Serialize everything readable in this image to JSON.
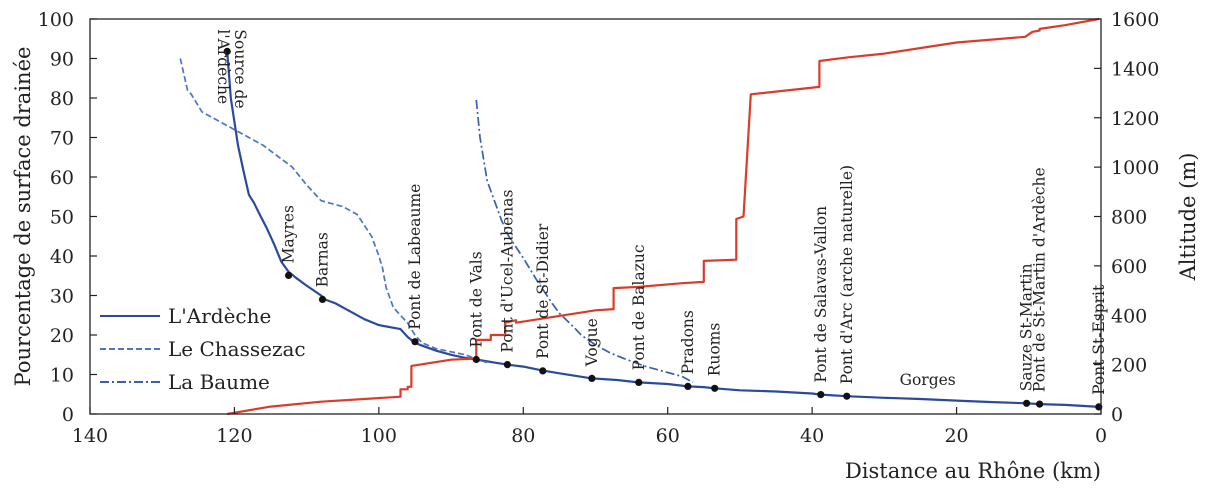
{
  "chart_data": {
    "type": "line",
    "x_axis": {
      "label": "Distance au Rhône (km)",
      "min": 0,
      "max": 140,
      "reversed": true,
      "ticks": [
        140,
        120,
        100,
        80,
        60,
        40,
        20,
        0
      ]
    },
    "y_left": {
      "label": "Pourcentage de surface drainée",
      "min": 0,
      "max": 100,
      "ticks": [
        0,
        10,
        20,
        30,
        40,
        50,
        60,
        70,
        80,
        90,
        100
      ]
    },
    "y_right": {
      "label": "Altitude (m)",
      "min": 0,
      "max": 1600,
      "ticks": [
        0,
        200,
        400,
        600,
        800,
        1000,
        1200,
        1400,
        1600
      ]
    },
    "grid": false,
    "legend": {
      "placement": "lower-left",
      "entries": [
        {
          "name": "L'Ardèche",
          "series": "ardeche"
        },
        {
          "name": "Le Chassezac",
          "series": "chassezac"
        },
        {
          "name": "La Baume",
          "series": "baume"
        }
      ]
    },
    "series": [
      {
        "id": "ardeche",
        "name": "L'Ardèche",
        "axis": "left",
        "color": "#2b4a9c",
        "style": "solid",
        "x": [
          121,
          120.5,
          119.5,
          118.8,
          118,
          117.3,
          116.5,
          115.5,
          114.5,
          113.5,
          112.5,
          111.5,
          110,
          108,
          107.5,
          106,
          104,
          102,
          100,
          97,
          96,
          95,
          94,
          92,
          90,
          88,
          86.5,
          84,
          82.2,
          80,
          77.3,
          75,
          70.5,
          67,
          64,
          60,
          57.2,
          55,
          53.5,
          50,
          45,
          40,
          38.8,
          35.2,
          30,
          25,
          20,
          15,
          10.3,
          8.5,
          5,
          2,
          0.3
        ],
        "y": [
          91.8,
          80,
          68,
          62,
          55.5,
          53.5,
          50.5,
          47,
          43,
          38.5,
          36,
          34.5,
          32.5,
          30,
          29,
          28,
          26,
          24,
          22.5,
          21.5,
          19.5,
          18,
          17.3,
          16,
          15,
          14.2,
          13.8,
          13,
          12.5,
          12,
          11,
          10.3,
          9,
          8.6,
          8,
          7.6,
          7,
          6.8,
          6.5,
          6,
          5.7,
          5.2,
          4.9,
          4.5,
          4.1,
          3.8,
          3.4,
          3.0,
          2.7,
          2.5,
          2.3,
          2.0,
          1.8
        ]
      },
      {
        "id": "chassezac",
        "name": "Le Chassezac",
        "axis": "left",
        "color": "#4a76c4",
        "style": "dashed",
        "x": [
          127.5,
          127,
          126.5,
          126,
          125,
          124.5,
          123,
          120,
          116,
          112,
          110,
          108,
          105,
          103,
          101,
          100,
          99.5,
          99,
          98,
          97,
          96,
          95,
          94,
          92,
          88,
          86,
          85
        ],
        "y": [
          90,
          86,
          82,
          81,
          78,
          76.5,
          75,
          72,
          68,
          62.5,
          58,
          54,
          52.5,
          50.5,
          45,
          40,
          37,
          32,
          27,
          25,
          23,
          20,
          18,
          16.5,
          15,
          13.5,
          13
        ]
      },
      {
        "id": "baume",
        "name": "La Baume",
        "axis": "left",
        "color": "#3b5fb0",
        "style": "dashdot",
        "x": [
          86.5,
          86,
          85,
          84,
          83,
          82,
          80,
          78,
          76,
          75,
          73,
          72,
          70,
          68,
          66,
          63,
          60,
          58,
          56.5
        ],
        "y": [
          79.5,
          70,
          59,
          54,
          49,
          45,
          39.5,
          33.5,
          28,
          25.5,
          22,
          20,
          17.5,
          15.5,
          14,
          12,
          10.5,
          9.5,
          8
        ]
      },
      {
        "id": "altitude",
        "name": "Altitude",
        "axis": "right",
        "color": "#d93c2b",
        "style": "solid",
        "x": [
          121,
          115,
          108,
          97,
          97,
          96,
          96,
          95.5,
          95.5,
          90,
          86.5,
          86.5,
          84.5,
          84.5,
          82.5,
          82.5,
          81,
          81,
          70,
          67.5,
          67.5,
          64,
          58,
          55,
          55,
          50.5,
          50.5,
          49.5,
          49.5,
          48.5,
          48.5,
          39,
          39,
          35,
          30,
          20,
          10.5,
          9.5,
          8.5,
          8.5,
          5,
          0.3
        ],
        "y": [
          0,
          30,
          50,
          70,
          100,
          100,
          110,
          110,
          195,
          220,
          225,
          300,
          300,
          320,
          320,
          370,
          380,
          370,
          420,
          425,
          510,
          515,
          530,
          535,
          620,
          625,
          790,
          800,
          800,
          1295,
          1295,
          1325,
          1430,
          1445,
          1460,
          1505,
          1528,
          1548,
          1553,
          1560,
          1575,
          1600
        ]
      }
    ],
    "stations": [
      {
        "name": "Source de l'Ardèche",
        "lines": [
          "Source de",
          "l'Ardèche"
        ],
        "x": 121,
        "y": 91.8
      },
      {
        "name": "Mayres",
        "lines": [
          "Mayres"
        ],
        "x": 112.5,
        "y": 35.1
      },
      {
        "name": "Barnas",
        "lines": [
          "Barnas"
        ],
        "x": 107.8,
        "y": 29
      },
      {
        "name": "Pont de Labeaume",
        "lines": [
          "Pont de Labeaume"
        ],
        "x": 95,
        "y": 18.3
      },
      {
        "name": "Pont de Vals",
        "lines": [
          "Pont de Vals"
        ],
        "x": 86.5,
        "y": 13.8
      },
      {
        "name": "Pont d'Ucel-Aubenas",
        "lines": [
          "Pont d'Ucel-Aubenas"
        ],
        "x": 82.2,
        "y": 12.5
      },
      {
        "name": "Pont de St-Didier",
        "lines": [
          "Pont de St-Didier"
        ],
        "x": 77.3,
        "y": 10.9
      },
      {
        "name": "Vogue",
        "lines": [
          "Vogue"
        ],
        "x": 70.5,
        "y": 9
      },
      {
        "name": "Pont de Balazuc",
        "lines": [
          "Pont de Balazuc"
        ],
        "x": 64,
        "y": 8
      },
      {
        "name": "Pradons",
        "lines": [
          "Pradons"
        ],
        "x": 57.2,
        "y": 7
      },
      {
        "name": "Ruoms",
        "lines": [
          "Ruoms"
        ],
        "x": 53.5,
        "y": 6.5
      },
      {
        "name": "Pont de Salavas-Vallon",
        "lines": [
          "Pont de Salavas-Vallon"
        ],
        "x": 38.8,
        "y": 4.9
      },
      {
        "name": "Pont d'Arc (arche naturelle)",
        "lines": [
          "Pont d'Arc (arche naturelle)"
        ],
        "x": 35.2,
        "y": 4.5
      },
      {
        "name": "Sauze St-Martin",
        "lines": [
          "Sauze St-Martin"
        ],
        "x": 10.3,
        "y": 2.7
      },
      {
        "name": "Pont de St-Martin d'Ardèche",
        "lines": [
          "Pont de St-Martin d'Ardèche"
        ],
        "x": 8.5,
        "y": 2.5
      },
      {
        "name": "Pont St-Esprit",
        "lines": [
          "Pont St-Esprit"
        ],
        "x": 0.3,
        "y": 1.8
      }
    ],
    "annotations": [
      {
        "text": "Gorges",
        "x": 24,
        "y": 7.3
      }
    ]
  }
}
